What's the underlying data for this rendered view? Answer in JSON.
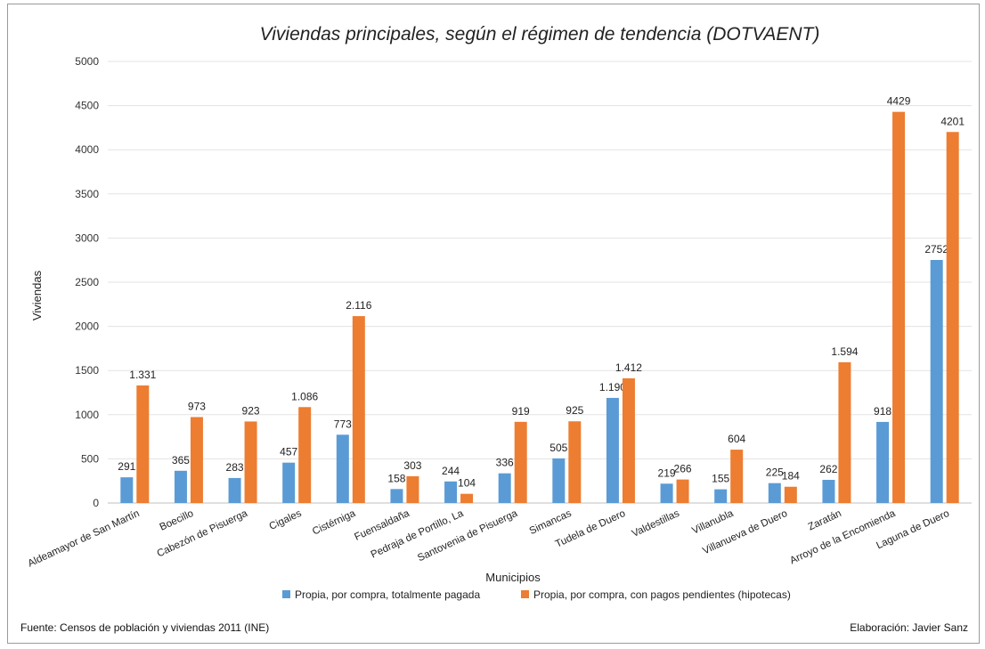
{
  "footer": {
    "source": "Fuente: Censos de población y viviendas 2011 (INE)",
    "author": "Elaboración: Javier Sanz"
  },
  "chart_data": {
    "type": "bar",
    "title": "Viviendas principales, según el régimen de tendencia (DOTVAENT)",
    "xlabel": "Municipios",
    "ylabel": "Viviendas",
    "ylim": [
      0,
      5000
    ],
    "yticks": [
      0,
      500,
      1000,
      1500,
      2000,
      2500,
      3000,
      3500,
      4000,
      4500,
      5000
    ],
    "grid": true,
    "legend_position": "bottom",
    "categories": [
      "Aldeamayor de San Martín",
      "Boecillo",
      "Cabezón de Pisuerga",
      "Cigales",
      "Cistérniga",
      "Fuensaldaña",
      "Pedraja de Portillo, La",
      "Santovenia de Pisuerga",
      "Simancas",
      "Tudela de Duero",
      "Valdestillas",
      "Villanubla",
      "Villanueva de Duero",
      "Zaratán",
      "Arroyo de la Encomienda",
      "Laguna de Duero"
    ],
    "series": [
      {
        "name": "Propia, por compra, totalmente pagada",
        "color": "#5b9bd5",
        "values": [
          291,
          365,
          283,
          457,
          773,
          158,
          244,
          336,
          505,
          1190,
          219,
          155,
          225,
          262,
          918,
          2752
        ],
        "labels": [
          "291",
          "365",
          "283",
          "457",
          "773",
          "158",
          "244",
          "336",
          "505",
          "1.190",
          "219",
          "155",
          "225",
          "262",
          "918",
          "2752"
        ]
      },
      {
        "name": "Propia, por compra, con pagos pendientes (hipotecas)",
        "color": "#ed7d31",
        "values": [
          1331,
          973,
          923,
          1086,
          2116,
          303,
          104,
          919,
          925,
          1412,
          266,
          604,
          184,
          1594,
          4429,
          4201
        ],
        "labels": [
          "1.331",
          "973",
          "923",
          "1.086",
          "2.116",
          "303",
          "104",
          "919",
          "925",
          "1.412",
          "266",
          "604",
          "184",
          "1.594",
          "4429",
          "4201"
        ]
      }
    ]
  }
}
